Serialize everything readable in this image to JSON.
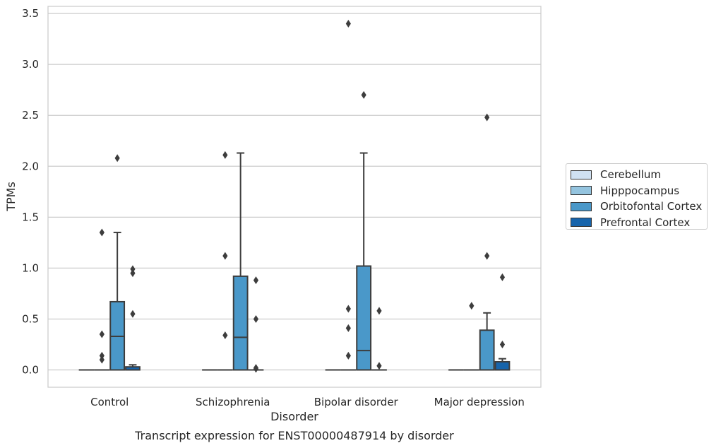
{
  "chart_data": {
    "type": "box",
    "caption": "Transcript expression for ENST00000487914 by disorder",
    "xlabel": "Disorder",
    "ylabel": "TPMs",
    "ylim": [
      -0.17,
      3.57
    ],
    "yticks": [
      0.0,
      0.5,
      1.0,
      1.5,
      2.0,
      2.5,
      3.0,
      3.5
    ],
    "ytick_labels": [
      "0.0",
      "0.5",
      "1.0",
      "1.5",
      "2.0",
      "2.5",
      "3.0",
      "3.5"
    ],
    "grid": "horizontal",
    "legend_position": "right",
    "categories": [
      "Control",
      "Schizophrenia",
      "Bipolar disorder",
      "Major depression"
    ],
    "series": [
      {
        "name": "Cerebellum",
        "color": "#d0e1f2",
        "boxes": [
          {
            "q1": 0,
            "median": 0,
            "q3": 0,
            "whisker_low": 0,
            "whisker_high": 0,
            "outliers": []
          },
          {
            "q1": 0,
            "median": 0,
            "q3": 0,
            "whisker_low": 0,
            "whisker_high": 0,
            "outliers": []
          },
          {
            "q1": 0,
            "median": 0,
            "q3": 0,
            "whisker_low": 0,
            "whisker_high": 0,
            "outliers": []
          },
          {
            "q1": 0,
            "median": 0,
            "q3": 0,
            "whisker_low": 0,
            "whisker_high": 0,
            "outliers": []
          }
        ]
      },
      {
        "name": "Hipppocampus",
        "color": "#94c4df",
        "boxes": [
          {
            "q1": 0,
            "median": 0,
            "q3": 0,
            "whisker_low": 0,
            "whisker_high": 0,
            "outliers": [
              1.35,
              0.14,
              0.1,
              0.35
            ]
          },
          {
            "q1": 0,
            "median": 0,
            "q3": 0,
            "whisker_low": 0,
            "whisker_high": 0,
            "outliers": [
              2.11,
              1.12,
              0.34
            ]
          },
          {
            "q1": 0,
            "median": 0,
            "q3": 0,
            "whisker_low": 0,
            "whisker_high": 0,
            "outliers": [
              3.4,
              0.6,
              0.41,
              0.14
            ]
          },
          {
            "q1": 0,
            "median": 0,
            "q3": 0,
            "whisker_low": 0,
            "whisker_high": 0,
            "outliers": [
              0.63
            ]
          }
        ]
      },
      {
        "name": "Orbitofontal Cortex",
        "color": "#4a98c9",
        "boxes": [
          {
            "q1": 0,
            "median": 0.33,
            "q3": 0.67,
            "whisker_low": 0,
            "whisker_high": 1.35,
            "outliers": [
              2.08
            ]
          },
          {
            "q1": 0,
            "median": 0.32,
            "q3": 0.92,
            "whisker_low": 0,
            "whisker_high": 2.13,
            "outliers": []
          },
          {
            "q1": 0,
            "median": 0.19,
            "q3": 1.02,
            "whisker_low": 0,
            "whisker_high": 2.13,
            "outliers": [
              2.7
            ]
          },
          {
            "q1": 0,
            "median": 0,
            "q3": 0.39,
            "whisker_low": 0,
            "whisker_high": 0.56,
            "outliers": [
              2.48,
              1.12
            ]
          }
        ]
      },
      {
        "name": "Prefrontal Cortex",
        "color": "#1764ab",
        "boxes": [
          {
            "q1": 0,
            "median": 0,
            "q3": 0.03,
            "whisker_low": 0,
            "whisker_high": 0.05,
            "outliers": [
              0.99,
              0.95,
              0.55
            ]
          },
          {
            "q1": 0,
            "median": 0,
            "q3": 0,
            "whisker_low": 0,
            "whisker_high": 0,
            "outliers": [
              0.88,
              0.5,
              0.02,
              0.01
            ]
          },
          {
            "q1": 0,
            "median": 0,
            "q3": 0,
            "whisker_low": 0,
            "whisker_high": 0,
            "outliers": [
              0.58,
              0.04
            ]
          },
          {
            "q1": 0,
            "median": 0,
            "q3": 0.08,
            "whisker_low": 0,
            "whisker_high": 0.11,
            "outliers": [
              0.91,
              0.25
            ]
          }
        ]
      }
    ]
  }
}
